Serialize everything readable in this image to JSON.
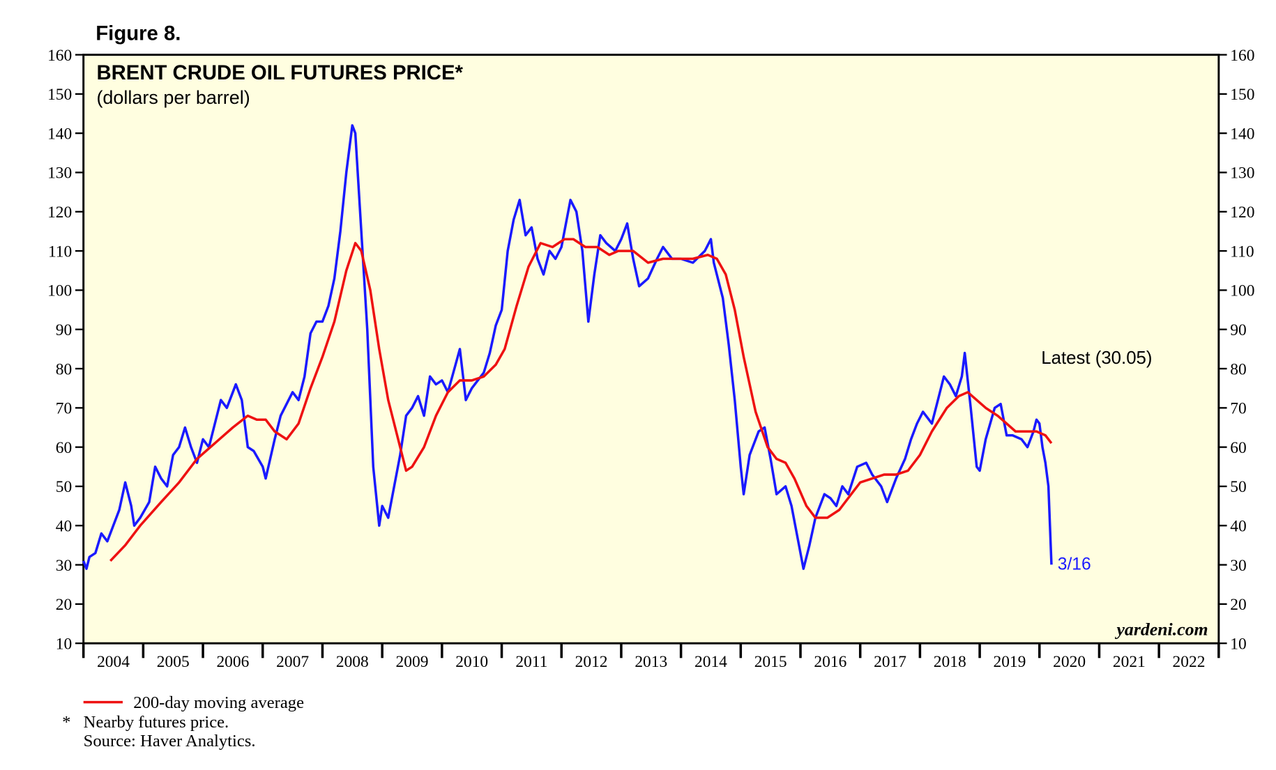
{
  "chart_data": {
    "type": "line",
    "figure_label": "Figure 8.",
    "title": "BRENT CRUDE OIL FUTURES PRICE*",
    "subtitle": "(dollars per barrel)",
    "source_mark": "yardeni.com",
    "annotations": [
      "Latest (30.05)",
      "3/16"
    ],
    "footnote_marker": "*",
    "notes": [
      "Nearby futures price.",
      "Source: Haver Analytics."
    ],
    "ylim": [
      10,
      160
    ],
    "yticks": [
      10,
      20,
      30,
      40,
      50,
      60,
      70,
      80,
      90,
      100,
      110,
      120,
      130,
      140,
      150,
      160
    ],
    "xlim": [
      2004,
      2023
    ],
    "xticks": [
      2004,
      2005,
      2006,
      2007,
      2008,
      2009,
      2010,
      2011,
      2012,
      2013,
      2014,
      2015,
      2016,
      2017,
      2018,
      2019,
      2020,
      2021,
      2022,
      2023
    ],
    "year_labels": [
      "2004",
      "2005",
      "2006",
      "2007",
      "2008",
      "2009",
      "2010",
      "2011",
      "2012",
      "2013",
      "2014",
      "2015",
      "2016",
      "2017",
      "2018",
      "2019",
      "2020",
      "2021",
      "2022"
    ],
    "background": "#fffee0",
    "series": [
      {
        "color": "#1a1aff",
        "x": [
          2004.0,
          2004.05,
          2004.1,
          2004.2,
          2004.3,
          2004.4,
          2004.5,
          2004.6,
          2004.7,
          2004.8,
          2004.85,
          2004.95,
          2005.1,
          2005.2,
          2005.3,
          2005.4,
          2005.5,
          2005.6,
          2005.7,
          2005.8,
          2005.9,
          2006.0,
          2006.1,
          2006.3,
          2006.4,
          2006.55,
          2006.65,
          2006.75,
          2006.85,
          2007.0,
          2007.05,
          2007.2,
          2007.3,
          2007.5,
          2007.6,
          2007.7,
          2007.8,
          2007.9,
          2008.0,
          2008.1,
          2008.2,
          2008.3,
          2008.4,
          2008.5,
          2008.55,
          2008.65,
          2008.75,
          2008.85,
          2008.95,
          2009.0,
          2009.1,
          2009.2,
          2009.3,
          2009.4,
          2009.5,
          2009.6,
          2009.7,
          2009.8,
          2009.9,
          2010.0,
          2010.1,
          2010.3,
          2010.4,
          2010.5,
          2010.6,
          2010.7,
          2010.8,
          2010.9,
          2011.0,
          2011.1,
          2011.2,
          2011.3,
          2011.4,
          2011.5,
          2011.6,
          2011.7,
          2011.8,
          2011.9,
          2012.0,
          2012.15,
          2012.25,
          2012.35,
          2012.45,
          2012.55,
          2012.65,
          2012.75,
          2012.9,
          2013.0,
          2013.1,
          2013.2,
          2013.3,
          2013.45,
          2013.6,
          2013.7,
          2013.85,
          2014.0,
          2014.2,
          2014.4,
          2014.5,
          2014.55,
          2014.7,
          2014.8,
          2014.9,
          2015.0,
          2015.05,
          2015.15,
          2015.3,
          2015.4,
          2015.5,
          2015.6,
          2015.75,
          2015.85,
          2015.95,
          2016.05,
          2016.15,
          2016.25,
          2016.4,
          2016.5,
          2016.6,
          2016.7,
          2016.8,
          2016.95,
          2017.1,
          2017.2,
          2017.35,
          2017.45,
          2017.6,
          2017.75,
          2017.85,
          2017.95,
          2018.05,
          2018.2,
          2018.3,
          2018.4,
          2018.5,
          2018.6,
          2018.7,
          2018.75,
          2018.85,
          2018.95,
          2019.0,
          2019.1,
          2019.25,
          2019.35,
          2019.45,
          2019.55,
          2019.7,
          2019.8,
          2019.9,
          2019.95,
          2020.0,
          2020.05,
          2020.1,
          2020.15,
          2020.2
        ],
        "values": [
          31,
          29,
          32,
          33,
          38,
          36,
          40,
          44,
          51,
          45,
          40,
          42,
          46,
          55,
          52,
          50,
          58,
          60,
          65,
          60,
          56,
          62,
          60,
          72,
          70,
          76,
          72,
          60,
          59,
          55,
          52,
          62,
          68,
          74,
          72,
          78,
          89,
          92,
          92,
          96,
          103,
          115,
          130,
          142,
          140,
          115,
          90,
          55,
          40,
          45,
          42,
          50,
          58,
          68,
          70,
          73,
          68,
          78,
          76,
          77,
          74,
          85,
          72,
          75,
          77,
          79,
          84,
          91,
          95,
          110,
          118,
          123,
          114,
          116,
          108,
          104,
          110,
          108,
          111,
          123,
          120,
          110,
          92,
          104,
          114,
          112,
          110,
          113,
          117,
          108,
          101,
          103,
          108,
          111,
          108,
          108,
          107,
          110,
          113,
          107,
          98,
          86,
          72,
          55,
          48,
          58,
          64,
          65,
          57,
          48,
          50,
          45,
          37,
          29,
          35,
          42,
          48,
          47,
          45,
          50,
          48,
          55,
          56,
          53,
          50,
          46,
          52,
          57,
          62,
          66,
          69,
          66,
          72,
          78,
          76,
          73,
          78,
          84,
          70,
          55,
          54,
          62,
          70,
          71,
          63,
          63,
          62,
          60,
          64,
          67,
          66,
          60,
          56,
          50,
          30.05
        ]
      },
      {
        "name": "200-day moving average",
        "color": "#ee1111",
        "x": [
          2004.45,
          2004.7,
          2004.95,
          2005.3,
          2005.6,
          2005.9,
          2006.2,
          2006.5,
          2006.75,
          2006.9,
          2007.05,
          2007.2,
          2007.4,
          2007.6,
          2007.8,
          2008.0,
          2008.2,
          2008.4,
          2008.55,
          2008.65,
          2008.8,
          2008.95,
          2009.1,
          2009.3,
          2009.4,
          2009.5,
          2009.7,
          2009.9,
          2010.1,
          2010.3,
          2010.5,
          2010.7,
          2010.9,
          2011.05,
          2011.25,
          2011.45,
          2011.65,
          2011.85,
          2012.05,
          2012.2,
          2012.4,
          2012.6,
          2012.8,
          2012.95,
          2013.2,
          2013.45,
          2013.7,
          2013.95,
          2014.2,
          2014.45,
          2014.6,
          2014.75,
          2014.9,
          2015.05,
          2015.25,
          2015.45,
          2015.6,
          2015.75,
          2015.9,
          2016.1,
          2016.25,
          2016.45,
          2016.65,
          2016.85,
          2017.0,
          2017.2,
          2017.4,
          2017.6,
          2017.8,
          2018.0,
          2018.2,
          2018.45,
          2018.65,
          2018.8,
          2018.95,
          2019.1,
          2019.3,
          2019.45,
          2019.6,
          2019.8,
          2019.95,
          2020.1,
          2020.2
        ],
        "values": [
          31,
          35,
          40,
          46,
          51,
          57,
          61,
          65,
          68,
          67,
          67,
          64,
          62,
          66,
          75,
          83,
          92,
          105,
          112,
          110,
          100,
          85,
          72,
          60,
          54,
          55,
          60,
          68,
          74,
          77,
          77,
          78,
          81,
          85,
          96,
          106,
          112,
          111,
          113,
          113,
          111,
          111,
          109,
          110,
          110,
          107,
          108,
          108,
          108,
          109,
          108,
          104,
          95,
          83,
          69,
          60,
          57,
          56,
          52,
          45,
          42,
          42,
          44,
          48,
          51,
          52,
          53,
          53,
          54,
          58,
          64,
          70,
          73,
          74,
          72,
          70,
          68,
          66,
          64,
          64,
          64,
          63,
          61
        ]
      }
    ]
  }
}
